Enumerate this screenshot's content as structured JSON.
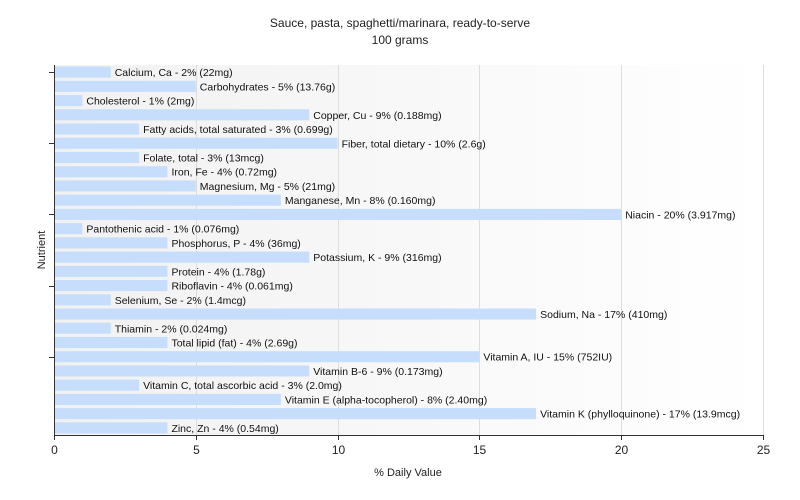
{
  "chart_data": {
    "type": "bar",
    "orientation": "horizontal",
    "title": "Sauce, pasta, spaghetti/marinara, ready-to-serve",
    "subtitle": "100 grams",
    "xlabel": "% Daily Value",
    "ylabel": "Nutrient",
    "xlim": [
      0,
      25
    ],
    "xticks": [
      0,
      5,
      10,
      15,
      20,
      25
    ],
    "grid": "vertical",
    "bar_color": "#c6defc",
    "categories": [
      "Calcium, Ca",
      "Carbohydrates",
      "Cholesterol",
      "Copper, Cu",
      "Fatty acids, total saturated",
      "Fiber, total dietary",
      "Folate, total",
      "Iron, Fe",
      "Magnesium, Mg",
      "Manganese, Mn",
      "Niacin",
      "Pantothenic acid",
      "Phosphorus, P",
      "Potassium, K",
      "Protein",
      "Riboflavin",
      "Selenium, Se",
      "Sodium, Na",
      "Thiamin",
      "Total lipid (fat)",
      "Vitamin A, IU",
      "Vitamin B-6",
      "Vitamin C, total ascorbic acid",
      "Vitamin E (alpha-tocopherol)",
      "Vitamin K (phylloquinone)",
      "Zinc, Zn"
    ],
    "values": [
      2,
      5,
      1,
      9,
      3,
      10,
      3,
      4,
      5,
      8,
      20,
      1,
      4,
      9,
      4,
      4,
      2,
      17,
      2,
      4,
      15,
      9,
      3,
      8,
      17,
      4
    ],
    "labels": [
      "Calcium, Ca - 2% (22mg)",
      "Carbohydrates - 5% (13.76g)",
      "Cholesterol - 1% (2mg)",
      "Copper, Cu - 9% (0.188mg)",
      "Fatty acids, total saturated - 3% (0.699g)",
      "Fiber, total dietary - 10% (2.6g)",
      "Folate, total - 3% (13mcg)",
      "Iron, Fe - 4% (0.72mg)",
      "Magnesium, Mg - 5% (21mg)",
      "Manganese, Mn - 8% (0.160mg)",
      "Niacin - 20% (3.917mg)",
      "Pantothenic acid - 1% (0.076mg)",
      "Phosphorus, P - 4% (36mg)",
      "Potassium, K - 9% (316mg)",
      "Protein - 4% (1.78g)",
      "Riboflavin - 4% (0.061mg)",
      "Selenium, Se - 2% (1.4mcg)",
      "Sodium, Na - 17% (410mg)",
      "Thiamin - 2% (0.024mg)",
      "Total lipid (fat) - 4% (2.69g)",
      "Vitamin A, IU - 15% (752IU)",
      "Vitamin B-6 - 9% (0.173mg)",
      "Vitamin C, total ascorbic acid - 3% (2.0mg)",
      "Vitamin E (alpha-tocopherol) - 8% (2.40mg)",
      "Vitamin K (phylloquinone) - 17% (13.9mcg)",
      "Zinc, Zn - 4% (0.54mg)"
    ]
  }
}
